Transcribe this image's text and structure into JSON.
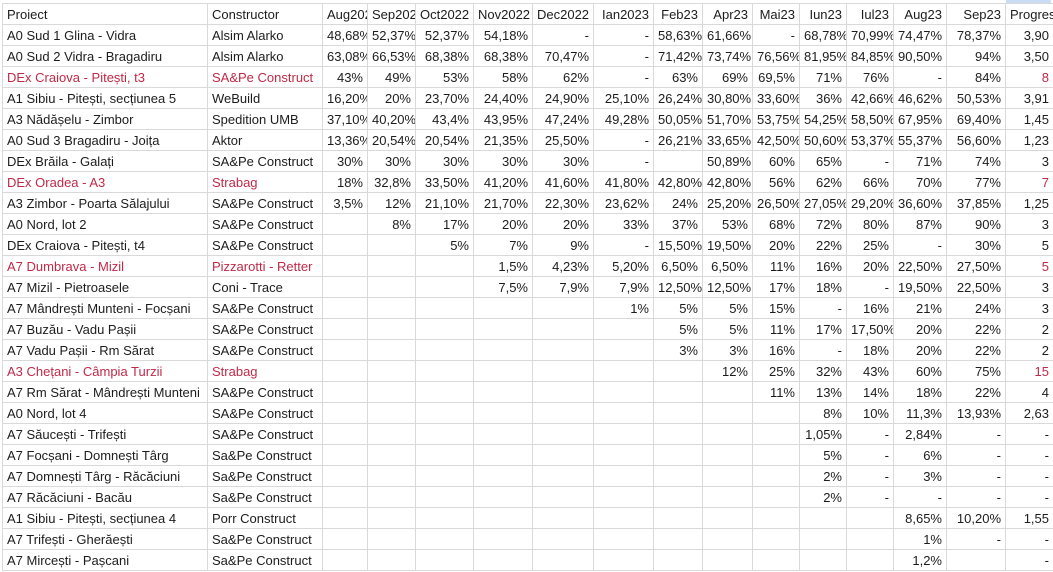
{
  "colors": {
    "text": "#1c1c1c",
    "red_text": "#c02948",
    "gridline": "#d9d9d9",
    "background": "#ffffff"
  },
  "table": {
    "columns": [
      {
        "key": "proiect",
        "label": "Proiect"
      },
      {
        "key": "constructor",
        "label": "Constructor"
      },
      {
        "key": "aug2022",
        "label": "Aug202"
      },
      {
        "key": "sep2022",
        "label": "Sep202"
      },
      {
        "key": "oct2022",
        "label": "Oct2022"
      },
      {
        "key": "nov2022",
        "label": "Nov2022"
      },
      {
        "key": "dec2022",
        "label": "Dec2022"
      },
      {
        "key": "ian2023",
        "label": "Ian2023"
      },
      {
        "key": "feb23",
        "label": "Feb23"
      },
      {
        "key": "apr23",
        "label": "Apr23"
      },
      {
        "key": "mai23",
        "label": "Mai23"
      },
      {
        "key": "iun23",
        "label": "Iun23"
      },
      {
        "key": "iul23",
        "label": "Iul23"
      },
      {
        "key": "aug23",
        "label": "Aug23"
      },
      {
        "key": "sep23",
        "label": "Sep23"
      },
      {
        "key": "progres",
        "label": "Progres"
      }
    ],
    "rows": [
      {
        "proiect": "A0 Sud 1 Glina - Vidra",
        "contractor": "Alsim Alarko",
        "red": false,
        "values": [
          "48,68%",
          "52,37%",
          "52,37%",
          "54,18%",
          "-",
          "-",
          "58,63%",
          "61,66%",
          "-",
          "68,78%",
          "70,99%",
          "74,47%",
          "78,37%"
        ],
        "progres": "3,90"
      },
      {
        "proiect": "A0 Sud 2 Vidra - Bragadiru",
        "contractor": "Alsim Alarko",
        "red": false,
        "values": [
          "63,08%",
          "66,53%",
          "68,38%",
          "68,38%",
          "70,47%",
          "-",
          "71,42%",
          "73,74%",
          "76,56%",
          "81,95%",
          "84,85%",
          "90,50%",
          "94%"
        ],
        "progres": "3,50"
      },
      {
        "proiect": "DEx Craiova - Pitești, t3",
        "contractor": "SA&Pe Construct",
        "red": true,
        "values": [
          "43%",
          "49%",
          "53%",
          "58%",
          "62%",
          "-",
          "63%",
          "69%",
          "69,5%",
          "71%",
          "76%",
          "-",
          "84%"
        ],
        "progres": "8"
      },
      {
        "proiect": "A1 Sibiu - Pitești, secțiunea 5",
        "contractor": "WeBuild",
        "red": false,
        "values": [
          "16,20%",
          "20%",
          "23,70%",
          "24,40%",
          "24,90%",
          "25,10%",
          "26,24%",
          "30,80%",
          "33,60%",
          "36%",
          "42,66%",
          "46,62%",
          "50,53%"
        ],
        "progres": "3,91"
      },
      {
        "proiect": "A3 Nădășelu - Zimbor",
        "contractor": "Spedition UMB",
        "red": false,
        "values": [
          "37,10%",
          "40,20%",
          "43,4%",
          "43,95%",
          "47,24%",
          "49,28%",
          "50,05%",
          "51,70%",
          "53,75%",
          "54,25%",
          "58,50%",
          "67,95%",
          "69,40%"
        ],
        "progres": "1,45"
      },
      {
        "proiect": "A0 Sud 3 Bragadiru - Joița",
        "contractor": "Aktor",
        "red": false,
        "values": [
          "13,36%",
          "20,54%",
          "20,54%",
          "21,35%",
          "25,50%",
          "-",
          "26,21%",
          "33,65%",
          "42,50%",
          "50,60%",
          "53,37%",
          "55,37%",
          "56,60%"
        ],
        "progres": "1,23"
      },
      {
        "proiect": "DEx Brăila - Galați",
        "contractor": "SA&Pe Construct",
        "red": false,
        "values": [
          "30%",
          "30%",
          "30%",
          "30%",
          "30%",
          "-",
          "",
          "50,89%",
          "60%",
          "65%",
          "-",
          "71%",
          "74%"
        ],
        "progres": "3"
      },
      {
        "proiect": "DEx Oradea - A3",
        "contractor": "Strabag",
        "red": true,
        "values": [
          "18%",
          "32,8%",
          "33,50%",
          "41,20%",
          "41,60%",
          "41,80%",
          "42,80%",
          "42,80%",
          "56%",
          "62%",
          "66%",
          "70%",
          "77%"
        ],
        "progres": "7"
      },
      {
        "proiect": "A3 Zimbor - Poarta Sălajului",
        "contractor": "SA&Pe Construct",
        "red": false,
        "values": [
          "3,5%",
          "12%",
          "21,10%",
          "21,70%",
          "22,30%",
          "23,62%",
          "24%",
          "25,20%",
          "26,50%",
          "27,05%",
          "29,20%",
          "36,60%",
          "37,85%"
        ],
        "progres": "1,25"
      },
      {
        "proiect": "A0 Nord, lot 2",
        "contractor": "SA&Pe Construct",
        "red": false,
        "values": [
          "",
          "8%",
          "17%",
          "20%",
          "20%",
          "33%",
          "37%",
          "53%",
          "68%",
          "72%",
          "80%",
          "87%",
          "90%"
        ],
        "progres": "3"
      },
      {
        "proiect": "DEx Craiova - Pitești, t4",
        "contractor": "SA&Pe Construct",
        "red": false,
        "values": [
          "",
          "",
          "5%",
          "7%",
          "9%",
          "-",
          "15,50%",
          "19,50%",
          "20%",
          "22%",
          "25%",
          "-",
          "30%"
        ],
        "progres": "5"
      },
      {
        "proiect": "A7 Dumbrava - Mizil",
        "contractor": "Pizzarotti - Retter",
        "red": true,
        "values": [
          "",
          "",
          "",
          "1,5%",
          "4,23%",
          "5,20%",
          "6,50%",
          "6,50%",
          "11%",
          "16%",
          "20%",
          "22,50%",
          "27,50%"
        ],
        "progres": "5"
      },
      {
        "proiect": "A7 Mizil - Pietroasele",
        "contractor": "Coni - Trace",
        "red": false,
        "values": [
          "",
          "",
          "",
          "7,5%",
          "7,9%",
          "7,9%",
          "12,50%",
          "12,50%",
          "17%",
          "18%",
          "-",
          "19,50%",
          "22,50%"
        ],
        "progres": "3"
      },
      {
        "proiect": "A7 Mândrești Munteni - Focșani",
        "contractor": "SA&Pe Construct",
        "red": false,
        "values": [
          "",
          "",
          "",
          "",
          "",
          "1%",
          "5%",
          "5%",
          "15%",
          "-",
          "16%",
          "21%",
          "24%"
        ],
        "progres": "3"
      },
      {
        "proiect": "A7 Buzău - Vadu Pașii",
        "contractor": "SA&Pe Construct",
        "red": false,
        "values": [
          "",
          "",
          "",
          "",
          "",
          "",
          "5%",
          "5%",
          "11%",
          "17%",
          "17,50%",
          "20%",
          "22%"
        ],
        "progres": "2"
      },
      {
        "proiect": "A7 Vadu Pașii - Rm Sărat",
        "contractor": "SA&Pe Construct",
        "red": false,
        "values": [
          "",
          "",
          "",
          "",
          "",
          "",
          "3%",
          "3%",
          "16%",
          "-",
          "18%",
          "20%",
          "22%"
        ],
        "progres": "2"
      },
      {
        "proiect": "A3 Chețani - Câmpia Turzii",
        "contractor": "Strabag",
        "red": true,
        "values": [
          "",
          "",
          "",
          "",
          "",
          "",
          "",
          "12%",
          "25%",
          "32%",
          "43%",
          "60%",
          "75%"
        ],
        "progres": "15"
      },
      {
        "proiect": "A7 Rm Sărat - Mândrești Munteni",
        "contractor": "SA&Pe Construct",
        "red": false,
        "values": [
          "",
          "",
          "",
          "",
          "",
          "",
          "",
          "",
          "11%",
          "13%",
          "14%",
          "18%",
          "22%"
        ],
        "progres": "4"
      },
      {
        "proiect": "A0 Nord, lot 4",
        "contractor": "SA&Pe Construct",
        "red": false,
        "values": [
          "",
          "",
          "",
          "",
          "",
          "",
          "",
          "",
          "",
          "8%",
          "10%",
          "11,3%",
          "13,93%"
        ],
        "progres": "2,63"
      },
      {
        "proiect": "A7 Săucești - Trifești",
        "contractor": "SA&Pe Construct",
        "red": false,
        "values": [
          "",
          "",
          "",
          "",
          "",
          "",
          "",
          "",
          "",
          "1,05%",
          "-",
          "2,84%",
          "-"
        ],
        "progres": "-"
      },
      {
        "proiect": "A7 Focșani - Domnești Târg",
        "contractor": "Sa&Pe Construct",
        "red": false,
        "values": [
          "",
          "",
          "",
          "",
          "",
          "",
          "",
          "",
          "",
          "5%",
          "-",
          "6%",
          "-"
        ],
        "progres": "-"
      },
      {
        "proiect": "A7 Domnești Târg - Răcăciuni",
        "contractor": "Sa&Pe Construct",
        "red": false,
        "values": [
          "",
          "",
          "",
          "",
          "",
          "",
          "",
          "",
          "",
          "2%",
          "-",
          "3%",
          "-"
        ],
        "progres": "-"
      },
      {
        "proiect": "A7 Răcăciuni - Bacău",
        "contractor": "Sa&Pe Construct",
        "red": false,
        "values": [
          "",
          "",
          "",
          "",
          "",
          "",
          "",
          "",
          "",
          "2%",
          "-",
          "-",
          "-"
        ],
        "progres": "-"
      },
      {
        "proiect": "A1 Sibiu - Pitești, secțiunea 4",
        "contractor": "Porr Construct",
        "red": false,
        "values": [
          "",
          "",
          "",
          "",
          "",
          "",
          "",
          "",
          "",
          "",
          "",
          "8,65%",
          "10,20%"
        ],
        "progres": "1,55"
      },
      {
        "proiect": "A7 Trifești - Gherăești",
        "contractor": "Sa&Pe Construct",
        "red": false,
        "values": [
          "",
          "",
          "",
          "",
          "",
          "",
          "",
          "",
          "",
          "",
          "",
          "1%",
          "-"
        ],
        "progres": "-"
      },
      {
        "proiect": "A7 Mircești - Pașcani",
        "contractor": "Sa&Pe Construct",
        "red": false,
        "values": [
          "",
          "",
          "",
          "",
          "",
          "",
          "",
          "",
          "",
          "",
          "",
          "1,2%",
          ""
        ],
        "progres": "-"
      }
    ]
  }
}
